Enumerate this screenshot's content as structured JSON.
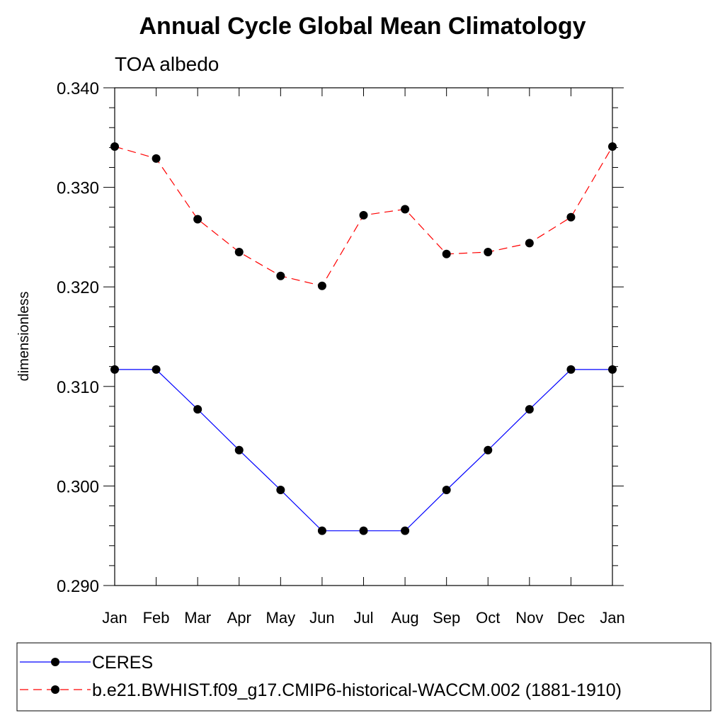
{
  "chart_data": {
    "type": "line",
    "title": "Annual Cycle Global Mean Climatology",
    "subtitle": "TOA albedo",
    "xlabel": "",
    "ylabel": "dimensionless",
    "categories": [
      "Jan",
      "Feb",
      "Mar",
      "Apr",
      "May",
      "Jun",
      "Jul",
      "Aug",
      "Sep",
      "Oct",
      "Nov",
      "Dec",
      "Jan"
    ],
    "ylim": [
      0.29,
      0.34
    ],
    "yticks": [
      0.29,
      0.3,
      0.31,
      0.32,
      0.33,
      0.34
    ],
    "ytick_labels": [
      "0.290",
      "0.300",
      "0.310",
      "0.320",
      "0.330",
      "0.340"
    ],
    "grid": false,
    "legend_position": "bottom",
    "series": [
      {
        "name": "CERES",
        "color": "#0000ff",
        "line_style": "solid",
        "marker": "filled-circle",
        "values": [
          0.3117,
          0.3117,
          0.3077,
          0.3036,
          0.2996,
          0.2955,
          0.2955,
          0.2955,
          0.2996,
          0.3036,
          0.3077,
          0.3117,
          0.3117
        ]
      },
      {
        "name": "b.e21.BWHIST.f09_g17.CMIP6-historical-WACCM.002 (1881-1910)",
        "color": "#ff0000",
        "line_style": "dashed",
        "marker": "filled-circle",
        "values": [
          0.3341,
          0.3329,
          0.3268,
          0.3235,
          0.3211,
          0.3201,
          0.3272,
          0.3278,
          0.3233,
          0.3235,
          0.3244,
          0.327,
          0.3341
        ]
      }
    ]
  }
}
